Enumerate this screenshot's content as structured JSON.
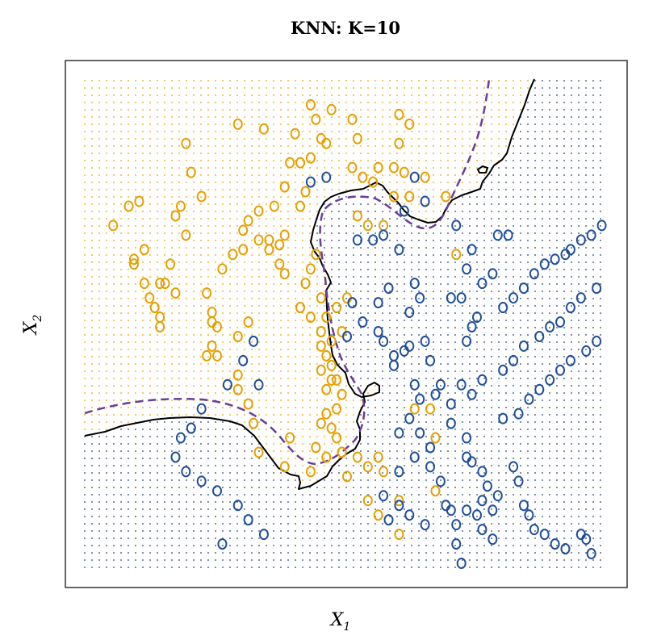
{
  "chart_data": {
    "type": "scatter",
    "title": "KNN: K=10",
    "xlabel": "X",
    "xlabel_subscript": "1",
    "ylabel": "X",
    "ylabel_subscript": "2",
    "xlim": [
      0,
      1
    ],
    "ylim": [
      0,
      1
    ],
    "grid": false,
    "classes": [
      {
        "name": "orange",
        "color": "#E69F00"
      },
      {
        "name": "blue",
        "color": "#1F4E9C"
      }
    ],
    "boundaries": [
      {
        "name": "knn-decision-boundary",
        "style": "solid",
        "color": "#000000"
      },
      {
        "name": "bayes-decision-boundary",
        "style": "dashed",
        "color": "#6A3D9A"
      }
    ],
    "series": [
      {
        "class": "orange",
        "points": [
          [
            0.05,
            0.7
          ],
          [
            0.08,
            0.74
          ],
          [
            0.1,
            0.75
          ],
          [
            0.11,
            0.65
          ],
          [
            0.09,
            0.63
          ],
          [
            0.09,
            0.62
          ],
          [
            0.11,
            0.58
          ],
          [
            0.12,
            0.55
          ],
          [
            0.13,
            0.53
          ],
          [
            0.14,
            0.49
          ],
          [
            0.15,
            0.58
          ],
          [
            0.17,
            0.56
          ],
          [
            0.14,
            0.58
          ],
          [
            0.14,
            0.51
          ],
          [
            0.16,
            0.62
          ],
          [
            0.17,
            0.72
          ],
          [
            0.18,
            0.74
          ],
          [
            0.19,
            0.68
          ],
          [
            0.2,
            0.81
          ],
          [
            0.19,
            0.87
          ],
          [
            0.22,
            0.76
          ],
          [
            0.23,
            0.56
          ],
          [
            0.24,
            0.5
          ],
          [
            0.24,
            0.52
          ],
          [
            0.25,
            0.49
          ],
          [
            0.24,
            0.45
          ],
          [
            0.25,
            0.43
          ],
          [
            0.23,
            0.43
          ],
          [
            0.29,
            0.47
          ],
          [
            0.31,
            0.5
          ],
          [
            0.26,
            0.61
          ],
          [
            0.28,
            0.64
          ],
          [
            0.3,
            0.65
          ],
          [
            0.3,
            0.69
          ],
          [
            0.31,
            0.71
          ],
          [
            0.33,
            0.67
          ],
          [
            0.33,
            0.73
          ],
          [
            0.35,
            0.67
          ],
          [
            0.35,
            0.65
          ],
          [
            0.37,
            0.66
          ],
          [
            0.37,
            0.62
          ],
          [
            0.38,
            0.6
          ],
          [
            0.38,
            0.68
          ],
          [
            0.36,
            0.74
          ],
          [
            0.38,
            0.78
          ],
          [
            0.39,
            0.83
          ],
          [
            0.41,
            0.83
          ],
          [
            0.43,
            0.84
          ],
          [
            0.42,
            0.77
          ],
          [
            0.4,
            0.89
          ],
          [
            0.34,
            0.9
          ],
          [
            0.29,
            0.91
          ],
          [
            0.43,
            0.95
          ],
          [
            0.44,
            0.92
          ],
          [
            0.45,
            0.88
          ],
          [
            0.46,
            0.87
          ],
          [
            0.47,
            0.94
          ],
          [
            0.51,
            0.92
          ],
          [
            0.52,
            0.88
          ],
          [
            0.51,
            0.82
          ],
          [
            0.53,
            0.8
          ],
          [
            0.55,
            0.79
          ],
          [
            0.56,
            0.82
          ],
          [
            0.6,
            0.93
          ],
          [
            0.62,
            0.91
          ],
          [
            0.6,
            0.87
          ],
          [
            0.59,
            0.82
          ],
          [
            0.61,
            0.81
          ],
          [
            0.52,
            0.72
          ],
          [
            0.54,
            0.7
          ],
          [
            0.57,
            0.7
          ],
          [
            0.59,
            0.76
          ],
          [
            0.62,
            0.76
          ],
          [
            0.65,
            0.8
          ],
          [
            0.69,
            0.76
          ],
          [
            0.71,
            0.64
          ],
          [
            0.41,
            0.74
          ],
          [
            0.44,
            0.64
          ],
          [
            0.43,
            0.61
          ],
          [
            0.42,
            0.58
          ],
          [
            0.41,
            0.53
          ],
          [
            0.43,
            0.51
          ],
          [
            0.45,
            0.55
          ],
          [
            0.45,
            0.48
          ],
          [
            0.45,
            0.45
          ],
          [
            0.47,
            0.46
          ],
          [
            0.46,
            0.43
          ],
          [
            0.47,
            0.41
          ],
          [
            0.45,
            0.4
          ],
          [
            0.48,
            0.38
          ],
          [
            0.47,
            0.38
          ],
          [
            0.46,
            0.36
          ],
          [
            0.49,
            0.35
          ],
          [
            0.48,
            0.32
          ],
          [
            0.46,
            0.31
          ],
          [
            0.45,
            0.29
          ],
          [
            0.47,
            0.28
          ],
          [
            0.48,
            0.26
          ],
          [
            0.49,
            0.23
          ],
          [
            0.46,
            0.22
          ],
          [
            0.44,
            0.24
          ],
          [
            0.43,
            0.19
          ],
          [
            0.38,
            0.2
          ],
          [
            0.39,
            0.26
          ],
          [
            0.33,
            0.23
          ],
          [
            0.29,
            0.39
          ],
          [
            0.29,
            0.36
          ],
          [
            0.31,
            0.33
          ],
          [
            0.32,
            0.29
          ],
          [
            0.5,
            0.18
          ],
          [
            0.54,
            0.2
          ],
          [
            0.56,
            0.22
          ],
          [
            0.52,
            0.22
          ],
          [
            0.49,
            0.48
          ],
          [
            0.46,
            0.51
          ],
          [
            0.48,
            0.53
          ],
          [
            0.5,
            0.55
          ],
          [
            0.57,
            0.19
          ],
          [
            0.6,
            0.13
          ],
          [
            0.6,
            0.06
          ],
          [
            0.63,
            0.32
          ],
          [
            0.66,
            0.32
          ],
          [
            0.67,
            0.26
          ],
          [
            0.67,
            0.15
          ],
          [
            0.56,
            0.1
          ],
          [
            0.54,
            0.13
          ]
        ]
      },
      {
        "class": "blue",
        "points": [
          [
            0.43,
            0.79
          ],
          [
            0.46,
            0.8
          ],
          [
            0.52,
            0.67
          ],
          [
            0.55,
            0.67
          ],
          [
            0.57,
            0.68
          ],
          [
            0.61,
            0.73
          ],
          [
            0.63,
            0.8
          ],
          [
            0.65,
            0.75
          ],
          [
            0.71,
            0.7
          ],
          [
            0.74,
            0.65
          ],
          [
            0.73,
            0.61
          ],
          [
            0.79,
            0.68
          ],
          [
            0.81,
            0.68
          ],
          [
            0.63,
            0.58
          ],
          [
            0.64,
            0.55
          ],
          [
            0.51,
            0.54
          ],
          [
            0.5,
            0.47
          ],
          [
            0.53,
            0.5
          ],
          [
            0.56,
            0.54
          ],
          [
            0.58,
            0.57
          ],
          [
            0.6,
            0.65
          ],
          [
            0.56,
            0.48
          ],
          [
            0.57,
            0.46
          ],
          [
            0.59,
            0.43
          ],
          [
            0.59,
            0.41
          ],
          [
            0.62,
            0.45
          ],
          [
            0.62,
            0.52
          ],
          [
            0.61,
            0.44
          ],
          [
            0.65,
            0.46
          ],
          [
            0.66,
            0.42
          ],
          [
            0.63,
            0.37
          ],
          [
            0.64,
            0.34
          ],
          [
            0.62,
            0.3
          ],
          [
            0.6,
            0.27
          ],
          [
            0.64,
            0.27
          ],
          [
            0.67,
            0.35
          ],
          [
            0.68,
            0.37
          ],
          [
            0.7,
            0.33
          ],
          [
            0.7,
            0.29
          ],
          [
            0.73,
            0.26
          ],
          [
            0.73,
            0.22
          ],
          [
            0.74,
            0.21
          ],
          [
            0.76,
            0.19
          ],
          [
            0.77,
            0.16
          ],
          [
            0.78,
            0.11
          ],
          [
            0.76,
            0.13
          ],
          [
            0.79,
            0.14
          ],
          [
            0.82,
            0.2
          ],
          [
            0.83,
            0.17
          ],
          [
            0.84,
            0.12
          ],
          [
            0.85,
            0.1
          ],
          [
            0.86,
            0.07
          ],
          [
            0.88,
            0.06
          ],
          [
            0.9,
            0.04
          ],
          [
            0.92,
            0.03
          ],
          [
            0.95,
            0.06
          ],
          [
            0.96,
            0.05
          ],
          [
            0.97,
            0.02
          ],
          [
            0.66,
            0.2
          ],
          [
            0.68,
            0.17
          ],
          [
            0.69,
            0.12
          ],
          [
            0.7,
            0.11
          ],
          [
            0.71,
            0.08
          ],
          [
            0.73,
            0.11
          ],
          [
            0.75,
            0.1
          ],
          [
            0.76,
            0.07
          ],
          [
            0.78,
            0.05
          ],
          [
            0.71,
            0.04
          ],
          [
            0.72,
            0.0
          ],
          [
            0.65,
            0.08
          ],
          [
            0.62,
            0.1
          ],
          [
            0.6,
            0.12
          ],
          [
            0.58,
            0.09
          ],
          [
            0.57,
            0.14
          ],
          [
            0.6,
            0.19
          ],
          [
            0.63,
            0.22
          ],
          [
            0.66,
            0.24
          ],
          [
            0.73,
            0.46
          ],
          [
            0.74,
            0.49
          ],
          [
            0.75,
            0.51
          ],
          [
            0.8,
            0.53
          ],
          [
            0.82,
            0.55
          ],
          [
            0.84,
            0.57
          ],
          [
            0.86,
            0.6
          ],
          [
            0.88,
            0.62
          ],
          [
            0.9,
            0.63
          ],
          [
            0.92,
            0.64
          ],
          [
            0.93,
            0.65
          ],
          [
            0.95,
            0.67
          ],
          [
            0.97,
            0.68
          ],
          [
            0.99,
            0.7
          ],
          [
            0.76,
            0.58
          ],
          [
            0.78,
            0.6
          ],
          [
            0.7,
            0.55
          ],
          [
            0.72,
            0.55
          ],
          [
            0.72,
            0.37
          ],
          [
            0.74,
            0.35
          ],
          [
            0.76,
            0.38
          ],
          [
            0.8,
            0.4
          ],
          [
            0.82,
            0.42
          ],
          [
            0.84,
            0.45
          ],
          [
            0.87,
            0.47
          ],
          [
            0.89,
            0.49
          ],
          [
            0.91,
            0.5
          ],
          [
            0.93,
            0.53
          ],
          [
            0.95,
            0.55
          ],
          [
            0.98,
            0.57
          ],
          [
            0.8,
            0.3
          ],
          [
            0.83,
            0.31
          ],
          [
            0.85,
            0.34
          ],
          [
            0.87,
            0.36
          ],
          [
            0.89,
            0.38
          ],
          [
            0.91,
            0.4
          ],
          [
            0.93,
            0.42
          ],
          [
            0.96,
            0.44
          ],
          [
            0.98,
            0.46
          ],
          [
            0.32,
            0.46
          ],
          [
            0.3,
            0.42
          ],
          [
            0.33,
            0.37
          ],
          [
            0.27,
            0.37
          ],
          [
            0.22,
            0.32
          ],
          [
            0.2,
            0.28
          ],
          [
            0.18,
            0.26
          ],
          [
            0.17,
            0.22
          ],
          [
            0.19,
            0.19
          ],
          [
            0.22,
            0.17
          ],
          [
            0.25,
            0.15
          ],
          [
            0.29,
            0.12
          ],
          [
            0.31,
            0.09
          ],
          [
            0.34,
            0.06
          ],
          [
            0.26,
            0.04
          ]
        ]
      }
    ]
  }
}
